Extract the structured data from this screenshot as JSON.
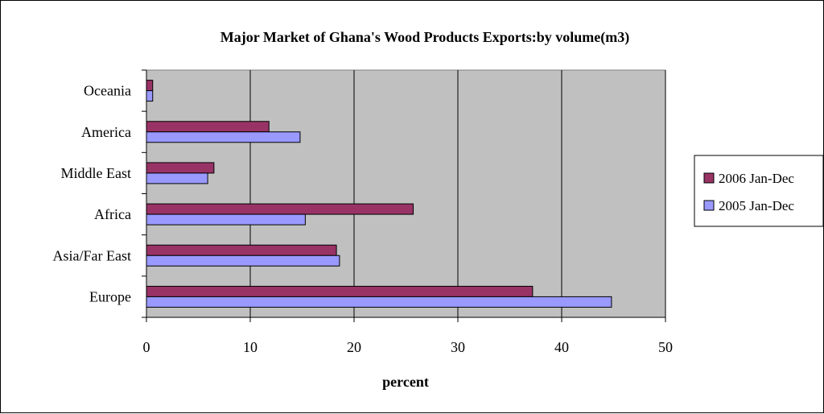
{
  "chart_data": {
    "type": "bar",
    "orientation": "horizontal",
    "title": "Major Market of Ghana's Wood Products Exports:by volume(m3)",
    "xlabel": "percent",
    "ylabel": "",
    "categories": [
      "Europe",
      "Asia/Far East",
      "Africa",
      "Middle East",
      "America",
      "Oceania"
    ],
    "series": [
      {
        "name": "2006 Jan-Dec",
        "color": "#993366",
        "values": [
          37.2,
          18.3,
          25.7,
          6.5,
          11.8,
          0.6
        ]
      },
      {
        "name": "2005 Jan-Dec",
        "color": "#9999ff",
        "values": [
          44.8,
          18.6,
          15.3,
          5.9,
          14.8,
          0.6
        ]
      }
    ],
    "xlim": [
      0,
      50
    ],
    "xticks": [
      0,
      10,
      20,
      30,
      40,
      50
    ],
    "grid": true,
    "plot_background": "#c0c0c0",
    "legend_position": "right"
  }
}
